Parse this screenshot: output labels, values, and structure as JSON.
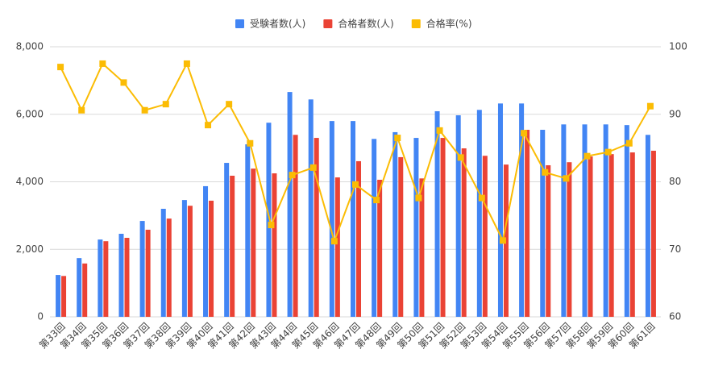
{
  "chart_data": {
    "type": "bar-line",
    "categories": [
      "第33回",
      "第34回",
      "第35回",
      "第36回",
      "第37回",
      "第38回",
      "第39回",
      "第40回",
      "第41回",
      "第42回",
      "第43回",
      "第44回",
      "第45回",
      "第46回",
      "第47回",
      "第48回",
      "第49回",
      "第50回",
      "第51回",
      "第52回",
      "第53回",
      "第54回",
      "第55回",
      "第56回",
      "第57回",
      "第58回",
      "第59回",
      "第60回",
      "第61回"
    ],
    "series": [
      {
        "name": "受験者数(人)",
        "color": "#4285f4",
        "type": "bar",
        "values": [
          1240,
          1740,
          2290,
          2460,
          2840,
          3200,
          3460,
          3870,
          4560,
          5110,
          5750,
          6660,
          6440,
          5800,
          5800,
          5270,
          5470,
          5300,
          6090,
          5970,
          6130,
          6320,
          6320,
          5540,
          5700,
          5700,
          5700,
          5680,
          5390
        ]
      },
      {
        "name": "合格者数(人)",
        "color": "#ea4335",
        "type": "bar",
        "values": [
          1210,
          1580,
          2240,
          2340,
          2580,
          2910,
          3290,
          3440,
          4180,
          4390,
          4250,
          5390,
          5300,
          4130,
          4610,
          4060,
          4730,
          4100,
          5300,
          4990,
          4770,
          4510,
          5540,
          4490,
          4580,
          4750,
          4820,
          4870,
          4920
        ]
      },
      {
        "name": "合格率(%)",
        "color": "#fbbc04",
        "type": "line",
        "axis": "y2",
        "values": [
          97.0,
          90.6,
          97.5,
          94.7,
          90.6,
          91.5,
          97.5,
          88.4,
          91.5,
          85.7,
          73.6,
          81.0,
          82.1,
          71.2,
          79.6,
          77.3,
          86.5,
          77.6,
          87.6,
          83.6,
          77.6,
          71.3,
          87.2,
          81.4,
          80.5,
          83.8,
          84.4,
          85.7,
          91.2
        ]
      }
    ],
    "ylim": [
      0,
      8000
    ],
    "yticks": [
      0,
      {
        "value": 2000,
        "label": "2,000"
      },
      {
        "value": 4000,
        "label": "4,000"
      },
      {
        "value": 6000,
        "label": "6,000"
      },
      {
        "value": 8000,
        "label": "8,000"
      }
    ],
    "y2lim": [
      60,
      100
    ],
    "y2ticks": [
      60,
      70,
      80,
      90,
      100
    ],
    "grid": true,
    "legend": "top"
  }
}
